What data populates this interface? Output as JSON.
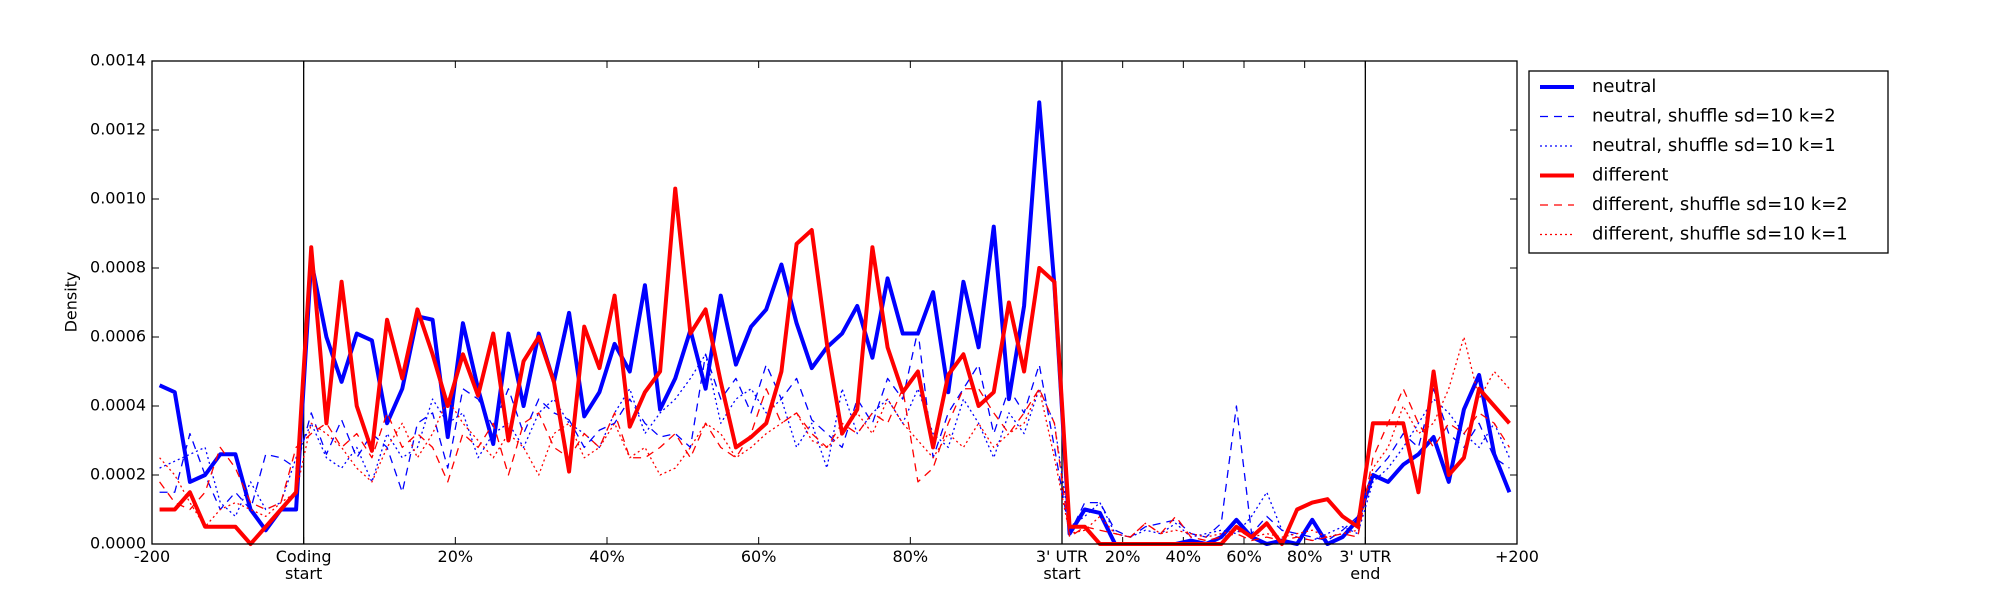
{
  "chart_data": {
    "type": "line",
    "ylabel": "Density",
    "xlim": [
      0,
      180
    ],
    "ylim": [
      0,
      0.0014
    ],
    "xticks": [
      {
        "value": 0,
        "label": "-200"
      },
      {
        "value": 20,
        "label": "Coding\nstart"
      },
      {
        "value": 40,
        "label": "20%"
      },
      {
        "value": 60,
        "label": "40%"
      },
      {
        "value": 80,
        "label": "60%"
      },
      {
        "value": 100,
        "label": "80%"
      },
      {
        "value": 120,
        "label": "3' UTR\nstart"
      },
      {
        "value": 128,
        "label": "20%"
      },
      {
        "value": 136,
        "label": "40%"
      },
      {
        "value": 144,
        "label": "60%"
      },
      {
        "value": 152,
        "label": "80%"
      },
      {
        "value": 160,
        "label": "3' UTR\nend"
      },
      {
        "value": 180,
        "label": "+200"
      }
    ],
    "section_ticks": [
      1,
      6,
      11
    ],
    "yticks": [
      {
        "value": 0,
        "label": "0.0000"
      },
      {
        "value": 0.0002,
        "label": "0.0002"
      },
      {
        "value": 0.0004,
        "label": "0.0004"
      },
      {
        "value": 0.0006,
        "label": "0.0006"
      },
      {
        "value": 0.0008,
        "label": "0.0008"
      },
      {
        "value": 0.001,
        "label": "0.0010"
      },
      {
        "value": 0.0012,
        "label": "0.0012"
      },
      {
        "value": 0.0014,
        "label": "0.0014"
      }
    ],
    "legend": "outside upper right",
    "x": [
      1,
      3,
      5,
      7,
      9,
      11,
      13,
      15,
      17,
      19,
      21,
      23,
      25,
      27,
      29,
      31,
      33,
      35,
      37,
      39,
      41,
      43,
      45,
      47,
      49,
      51,
      53,
      55,
      57,
      59,
      61,
      63,
      65,
      67,
      69,
      71,
      73,
      75,
      77,
      79,
      81,
      83,
      85,
      87,
      89,
      91,
      93,
      95,
      97,
      99,
      101,
      103,
      105,
      107,
      109,
      111,
      113,
      115,
      117,
      119,
      121,
      123,
      125,
      127,
      129,
      131,
      133,
      135,
      137,
      139,
      141,
      143,
      145,
      147,
      149,
      151,
      153,
      155,
      157,
      159,
      161,
      163,
      165,
      167,
      169,
      171,
      173,
      175,
      177,
      179
    ],
    "series": [
      {
        "name": "neutral",
        "color": "#0000ff",
        "linestyle": "solid",
        "values": [
          0.00046,
          0.00044,
          0.00018,
          0.0002,
          0.00026,
          0.00026,
          0.0001,
          4e-05,
          0.0001,
          0.0001,
          0.00082,
          0.0006,
          0.00047,
          0.00061,
          0.00059,
          0.00035,
          0.00045,
          0.00066,
          0.00065,
          0.00031,
          0.00064,
          0.00045,
          0.00029,
          0.00061,
          0.0004,
          0.00061,
          0.00047,
          0.00067,
          0.00037,
          0.00044,
          0.00058,
          0.0005,
          0.00075,
          0.00039,
          0.00048,
          0.00062,
          0.00045,
          0.00072,
          0.00052,
          0.00063,
          0.00068,
          0.00081,
          0.00064,
          0.00051,
          0.00057,
          0.00061,
          0.00069,
          0.00054,
          0.00077,
          0.00061,
          0.00061,
          0.00073,
          0.00044,
          0.00076,
          0.00057,
          0.00092,
          0.00042,
          0.00069,
          0.00128,
          0.00075,
          3e-05,
          0.0001,
          9e-05,
          0,
          0,
          0,
          0,
          0,
          1e-05,
          0,
          2e-05,
          7e-05,
          2e-05,
          0,
          1e-05,
          0,
          7e-05,
          0,
          2e-05,
          7e-05,
          0.0002,
          0.00018,
          0.00023,
          0.00026,
          0.00031,
          0.00018,
          0.00039,
          0.00049,
          0.00026,
          0.00015
        ]
      },
      {
        "name": "neutral, shuffle sd=10 k=2",
        "color": "#0000ff",
        "linestyle": "dashed",
        "values": [
          0.00015,
          0.00015,
          0.00032,
          0.0002,
          0.0001,
          0.00015,
          0.0001,
          0.00026,
          0.00025,
          0.00022,
          0.00038,
          0.00026,
          0.00036,
          0.00025,
          0.00032,
          0.00028,
          0.00015,
          0.00035,
          0.00038,
          0.00022,
          0.00045,
          0.00042,
          0.00034,
          0.00045,
          0.00032,
          0.00042,
          0.00038,
          0.00036,
          0.00028,
          0.00033,
          0.00035,
          0.00042,
          0.00035,
          0.00031,
          0.00032,
          0.00028,
          0.00055,
          0.00042,
          0.00048,
          0.00038,
          0.00052,
          0.00042,
          0.00048,
          0.00036,
          0.00032,
          0.00028,
          0.00042,
          0.00035,
          0.00048,
          0.00042,
          0.00062,
          0.00025,
          0.00038,
          0.00045,
          0.00052,
          0.00032,
          0.00045,
          0.00038,
          0.00052,
          0.00028,
          3e-05,
          0.00012,
          0.00012,
          4e-05,
          2e-05,
          5e-05,
          6e-05,
          7e-05,
          3e-05,
          2e-05,
          6e-05,
          0.0004,
          3e-05,
          8e-05,
          4e-05,
          3e-05,
          2e-05,
          1e-05,
          4e-05,
          8e-05,
          0.0002,
          0.00025,
          0.00032,
          0.00028,
          0.00045,
          0.00032,
          0.00028,
          0.00035,
          0.00025,
          0.00022
        ]
      },
      {
        "name": "neutral, shuffle sd=10 k=1",
        "color": "#0000ff",
        "linestyle": "dotted",
        "values": [
          0.00022,
          0.00024,
          0.00026,
          0.00028,
          0.00012,
          8e-05,
          0.00018,
          0.0001,
          0.00012,
          0.00025,
          0.00035,
          0.00025,
          0.00022,
          0.00028,
          0.00018,
          0.00032,
          0.00025,
          0.00028,
          0.00042,
          0.00035,
          0.00038,
          0.00025,
          0.00032,
          0.00035,
          0.00028,
          0.00038,
          0.00042,
          0.00035,
          0.00032,
          0.00028,
          0.00038,
          0.00045,
          0.00032,
          0.00038,
          0.00042,
          0.00048,
          0.00055,
          0.00035,
          0.00042,
          0.00045,
          0.00038,
          0.00042,
          0.00028,
          0.00035,
          0.00022,
          0.00045,
          0.00032,
          0.00038,
          0.00042,
          0.00035,
          0.00045,
          0.00032,
          0.00028,
          0.00042,
          0.00035,
          0.00025,
          0.00038,
          0.00032,
          0.00045,
          0.00035,
          5e-05,
          8e-05,
          0.00012,
          3e-05,
          2e-05,
          4e-05,
          3e-05,
          6e-05,
          2e-05,
          3e-05,
          4e-05,
          3e-05,
          8e-05,
          0.00015,
          4e-05,
          2e-05,
          1e-05,
          3e-05,
          5e-05,
          3e-05,
          0.00018,
          0.00022,
          0.00028,
          0.00035,
          0.00042,
          0.00038,
          0.00032,
          0.00028,
          0.00035,
          0.00025
        ]
      },
      {
        "name": "different",
        "color": "#ff0000",
        "linestyle": "solid",
        "values": [
          0.0001,
          0.0001,
          0.00015,
          5e-05,
          5e-05,
          5e-05,
          0,
          5e-05,
          0.0001,
          0.00015,
          0.00086,
          0.00035,
          0.00076,
          0.0004,
          0.00027,
          0.00065,
          0.00048,
          0.00068,
          0.00055,
          0.0004,
          0.00055,
          0.00043,
          0.00061,
          0.0003,
          0.00053,
          0.0006,
          0.00047,
          0.00021,
          0.00063,
          0.00051,
          0.00072,
          0.00034,
          0.00044,
          0.0005,
          0.00103,
          0.00061,
          0.00068,
          0.00047,
          0.00028,
          0.00031,
          0.00035,
          0.0005,
          0.00087,
          0.00091,
          0.00058,
          0.00032,
          0.00039,
          0.00086,
          0.00057,
          0.00044,
          0.0005,
          0.00028,
          0.00049,
          0.00055,
          0.0004,
          0.00044,
          0.0007,
          0.0005,
          0.0008,
          0.00076,
          5e-05,
          5e-05,
          0,
          0,
          0,
          0,
          0,
          0,
          0,
          0,
          0,
          5e-05,
          2e-05,
          6e-05,
          0,
          0.0001,
          0.00012,
          0.00013,
          8e-05,
          5e-05,
          0.00035,
          0.00035,
          0.00035,
          0.00015,
          0.0005,
          0.0002,
          0.00025,
          0.00045,
          0.0004,
          0.00035
        ]
      },
      {
        "name": "different, shuffle sd=10 k=2",
        "color": "#ff0000",
        "linestyle": "dashed",
        "values": [
          0.00018,
          0.00012,
          0.0001,
          0.00015,
          0.00028,
          0.00022,
          0.00012,
          0.0001,
          0.00012,
          0.00028,
          0.00032,
          0.00035,
          0.00028,
          0.00032,
          0.00025,
          0.00038,
          0.00028,
          0.00032,
          0.00028,
          0.00018,
          0.00032,
          0.00028,
          0.00035,
          0.0002,
          0.00035,
          0.00038,
          0.00028,
          0.00025,
          0.00032,
          0.00028,
          0.00038,
          0.00025,
          0.00025,
          0.00028,
          0.00032,
          0.00025,
          0.00035,
          0.00028,
          0.00025,
          0.00032,
          0.00045,
          0.00035,
          0.00038,
          0.00032,
          0.00028,
          0.00035,
          0.00032,
          0.00038,
          0.00035,
          0.00045,
          0.00018,
          0.00022,
          0.00035,
          0.00045,
          0.00045,
          0.00038,
          0.00032,
          0.00038,
          0.00045,
          0.00035,
          2e-05,
          5e-05,
          4e-05,
          3e-05,
          2e-05,
          6e-05,
          3e-05,
          8e-05,
          2e-05,
          1e-05,
          2e-05,
          3e-05,
          1e-05,
          2e-05,
          1e-05,
          2e-05,
          1e-05,
          2e-05,
          3e-05,
          2e-05,
          0.00025,
          0.00035,
          0.00045,
          0.00035,
          0.00028,
          0.00035,
          0.00032,
          0.00038,
          0.00035,
          0.00028
        ]
      },
      {
        "name": "different, shuffle sd=10 k=1",
        "color": "#ff0000",
        "linestyle": "dotted",
        "values": [
          0.00025,
          0.0002,
          0.00012,
          5e-05,
          0.0001,
          0.00012,
          0.0001,
          8e-05,
          0.00012,
          0.00015,
          0.00035,
          0.00032,
          0.00028,
          0.00022,
          0.00018,
          0.00028,
          0.00035,
          0.00025,
          0.00032,
          0.00042,
          0.00035,
          0.0003,
          0.00025,
          0.00032,
          0.00028,
          0.0002,
          0.00032,
          0.00035,
          0.00025,
          0.00028,
          0.00035,
          0.00025,
          0.00028,
          0.0002,
          0.00022,
          0.00028,
          0.00035,
          0.00032,
          0.00025,
          0.00028,
          0.00032,
          0.00035,
          0.00038,
          0.0003,
          0.00028,
          0.00032,
          0.00038,
          0.00032,
          0.00042,
          0.00035,
          0.0003,
          0.00025,
          0.00032,
          0.00028,
          0.00035,
          0.00028,
          0.00032,
          0.00035,
          0.00045,
          0.00025,
          3e-05,
          4e-05,
          8e-05,
          3e-05,
          2e-05,
          6e-05,
          3e-05,
          4e-05,
          3e-05,
          2e-05,
          3e-05,
          4e-05,
          2e-05,
          3e-05,
          2e-05,
          3e-05,
          4e-05,
          2e-05,
          3e-05,
          4e-05,
          0.00022,
          0.00028,
          0.0004,
          0.00032,
          0.00035,
          0.00045,
          0.0006,
          0.00042,
          0.0005,
          0.00045
        ]
      }
    ]
  }
}
